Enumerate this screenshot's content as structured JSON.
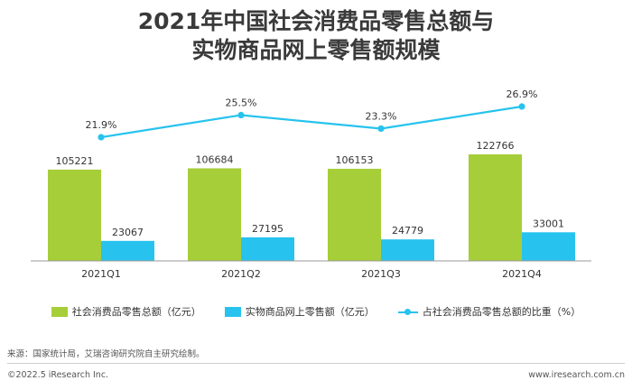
{
  "title_line1": "2021年中国社会消费品零售总额与",
  "title_line2": "实物商品网上零售额规模",
  "legend": {
    "total": "社会消费品零售总额（亿元）",
    "online": "实物商品网上零售额（亿元）",
    "ratio": "占社会消费品零售总额的比重（%）"
  },
  "colors": {
    "total": "#a6ce39",
    "online": "#27c3ee",
    "ratio": "#27c3ee",
    "axis": "#999999"
  },
  "chart_data": {
    "type": "bar",
    "categories": [
      "2021Q1",
      "2021Q2",
      "2021Q3",
      "2021Q4"
    ],
    "series": [
      {
        "name": "社会消费品零售总额（亿元）",
        "values": [
          105221,
          106684,
          106153,
          122766
        ]
      },
      {
        "name": "实物商品网上零售额（亿元）",
        "values": [
          23067,
          27195,
          24779,
          33001
        ]
      }
    ],
    "line_series": {
      "name": "占社会消费品零售总额的比重（%）",
      "values": [
        21.9,
        25.5,
        23.3,
        26.9
      ],
      "labels": [
        "21.9%",
        "25.5%",
        "23.3%",
        "26.9%"
      ]
    },
    "legend_position": "bottom"
  },
  "source": "来源：国家统计局，艾瑞咨询研究院自主研究绘制。",
  "footer_left": "©2022.5 iResearch Inc.",
  "footer_right": "www.iresearch.com.cn"
}
